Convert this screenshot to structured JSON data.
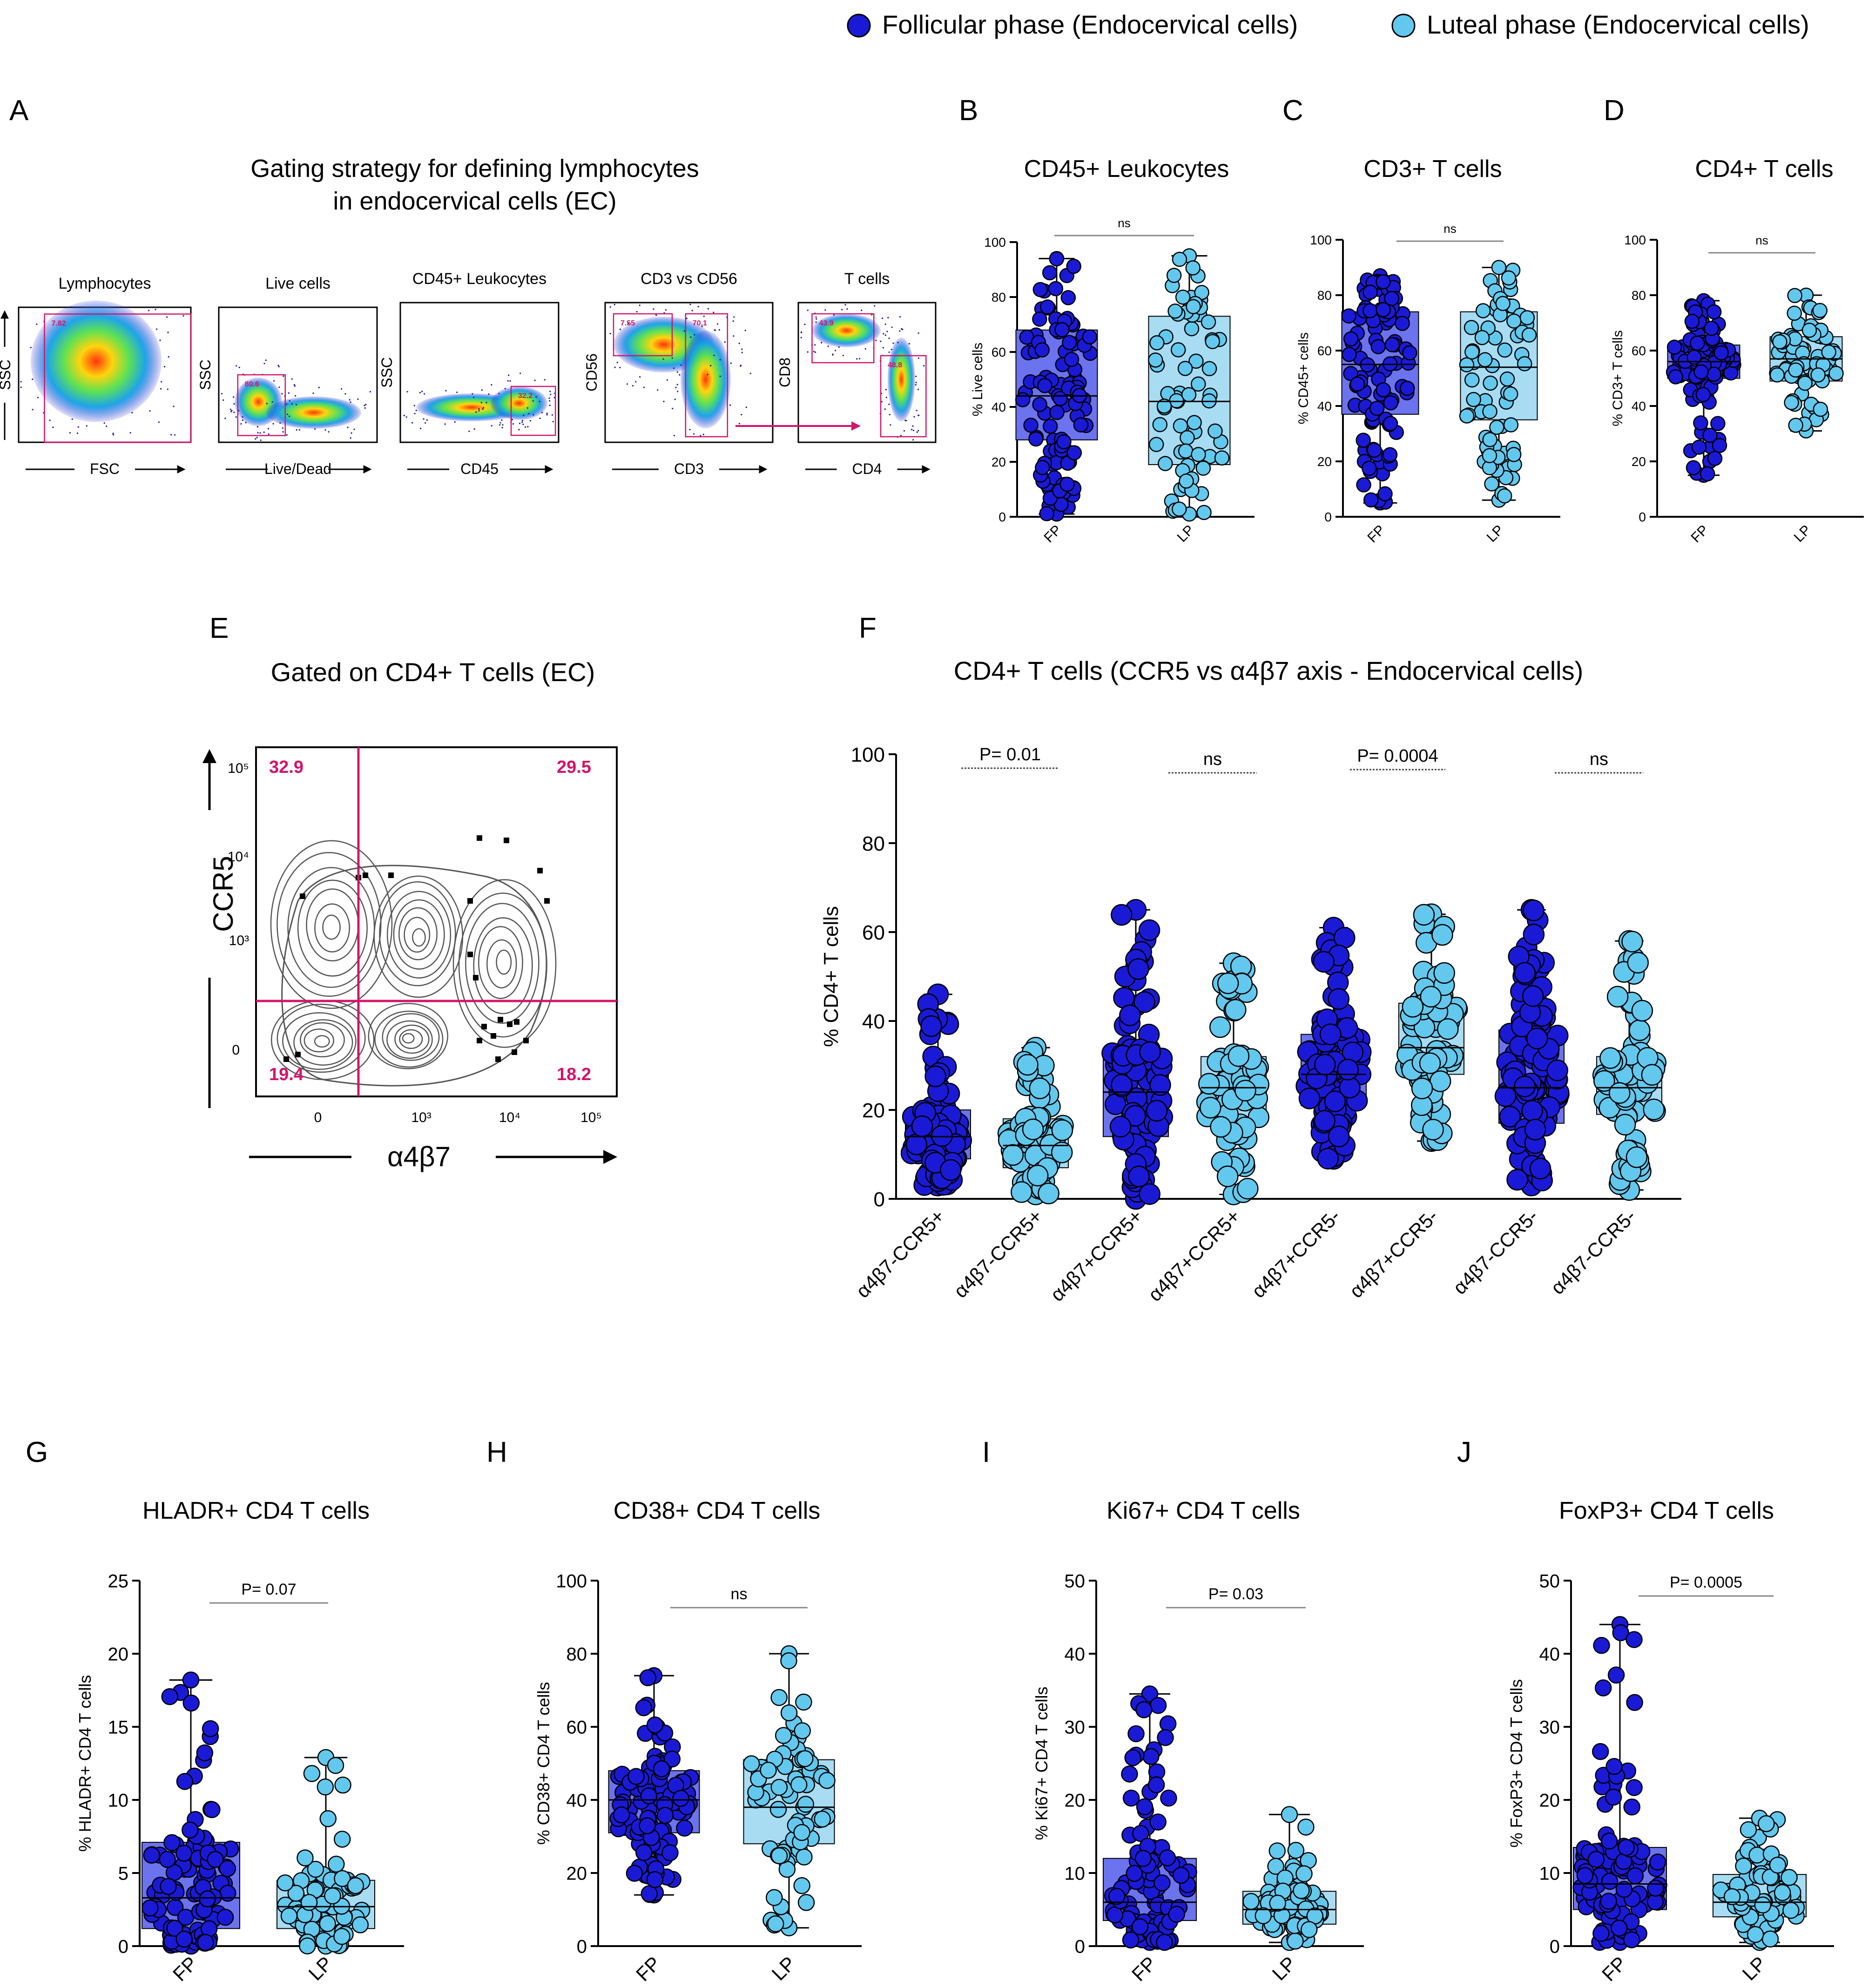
{
  "colors": {
    "fp": "#1a1ad6",
    "lp": "#63c8ee",
    "fp_box": "#6b73ee",
    "lp_box": "#a7dcf3",
    "gate": "#d4136a",
    "contour": "#555555",
    "point_edge": "#000000"
  },
  "legend": [
    {
      "label": "Follicular phase (Endocervical cells)",
      "color": "fp"
    },
    {
      "label": "Luteal phase (Endocervical cells)",
      "color": "lp"
    }
  ],
  "panel_a": {
    "letter": "A",
    "title_line1": "Gating strategy for defining lymphocytes",
    "title_line2": "in endocervical cells (EC)",
    "plots": [
      {
        "title": "Lymphocytes",
        "xlabel": "FSC",
        "ylabel": "SSC",
        "gates": [
          "7.82"
        ]
      },
      {
        "title": "Live cells",
        "xlabel": "Live/Dead",
        "ylabel": "SSC",
        "gates": [
          "80.6"
        ]
      },
      {
        "title": "CD45+ Leukocytes",
        "xlabel": "CD45",
        "ylabel": "SSC",
        "gates": [
          "32.2"
        ]
      },
      {
        "title": "CD3 vs CD56",
        "xlabel": "CD3",
        "ylabel": "CD56",
        "gates": [
          "7.55",
          "70.1"
        ]
      },
      {
        "title": "T cells",
        "xlabel": "CD4",
        "ylabel": "CD8",
        "gates": [
          "43.9",
          "48.8"
        ]
      }
    ]
  },
  "panel_e": {
    "letter": "E",
    "title": "Gated on CD4+ T cells (EC)",
    "ylabel": "CCR5",
    "xlabel": "α4β7",
    "quadrants": {
      "top_left": "32.9",
      "top_right": "29.5",
      "bottom_left": "19.4",
      "bottom_right": "18.2"
    },
    "x_ticks": [
      "0",
      "10³",
      "10⁴",
      "10⁵"
    ],
    "y_ticks": [
      "10⁵",
      "10⁴",
      "10³",
      "0"
    ]
  },
  "chart_data": [
    {
      "id": "B",
      "letter": "B",
      "type": "box",
      "title": "CD45+ Leukocytes",
      "ylabel": "% Live cells",
      "ylim": [
        0,
        100
      ],
      "yticks": [
        0,
        20,
        40,
        60,
        80,
        100
      ],
      "categories": [
        "FP",
        "LP"
      ],
      "annotation": "ns",
      "groups": [
        {
          "phase": "fp",
          "label": "FP",
          "min": 1,
          "q1": 28,
          "median": 44,
          "q3": 68,
          "max": 94,
          "n": 110
        },
        {
          "phase": "lp",
          "label": "LP",
          "min": 1,
          "q1": 19,
          "median": 42,
          "q3": 73,
          "max": 95,
          "n": 75
        }
      ]
    },
    {
      "id": "C",
      "letter": "C",
      "type": "box",
      "title": "CD3+ T cells",
      "ylabel": "% CD45+ cells",
      "ylim": [
        0,
        100
      ],
      "yticks": [
        0,
        20,
        40,
        60,
        80,
        100
      ],
      "categories": [
        "FP",
        "LP"
      ],
      "annotation": "ns",
      "groups": [
        {
          "phase": "fp",
          "label": "FP",
          "min": 5,
          "q1": 37,
          "median": 55,
          "q3": 74,
          "max": 87,
          "n": 105
        },
        {
          "phase": "lp",
          "label": "LP",
          "min": 6,
          "q1": 35,
          "median": 54,
          "q3": 74,
          "max": 90,
          "n": 75
        }
      ]
    },
    {
      "id": "D",
      "letter": "D",
      "type": "box",
      "title": "CD4+ T cells",
      "ylabel": "% CD3+ T cells",
      "ylim": [
        0,
        100
      ],
      "yticks": [
        0,
        20,
        40,
        60,
        80,
        100
      ],
      "categories": [
        "FP",
        "LP"
      ],
      "annotation": "ns",
      "groups": [
        {
          "phase": "fp",
          "label": "FP",
          "min": 15,
          "q1": 50,
          "median": 56,
          "q3": 62,
          "max": 78,
          "n": 110
        },
        {
          "phase": "lp",
          "label": "LP",
          "min": 31,
          "q1": 49,
          "median": 57,
          "q3": 65,
          "max": 80,
          "n": 75
        }
      ]
    },
    {
      "id": "F",
      "letter": "F",
      "type": "box",
      "title": "CD4+ T cells (CCR5 vs α4β7 axis - Endocervical cells)",
      "ylabel": "% CD4+ T cells",
      "ylim": [
        0,
        100
      ],
      "yticks": [
        0,
        20,
        40,
        60,
        80,
        100
      ],
      "categories": [
        "α4β7-CCR5+",
        "α4β7-CCR5+",
        "α4β7+CCR5+",
        "α4β7+CCR5+",
        "α4β7+CCR5-",
        "α4β7+CCR5-",
        "α4β7-CCR5-",
        "α4β7-CCR5-"
      ],
      "comparisons": [
        "P= 0.01",
        "ns",
        "P= 0.0004",
        "ns"
      ],
      "groups": [
        {
          "phase": "fp",
          "label": "α4β7-CCR5+",
          "min": 3,
          "q1": 9,
          "median": 14,
          "q3": 20,
          "max": 46,
          "n": 100
        },
        {
          "phase": "lp",
          "label": "α4β7-CCR5+",
          "min": 1,
          "q1": 7,
          "median": 12,
          "q3": 18,
          "max": 34,
          "n": 75
        },
        {
          "phase": "fp",
          "label": "α4β7+CCR5+",
          "min": 0,
          "q1": 14,
          "median": 24,
          "q3": 33,
          "max": 65,
          "n": 100
        },
        {
          "phase": "lp",
          "label": "α4β7+CCR5+",
          "min": 1,
          "q1": 17,
          "median": 25,
          "q3": 32,
          "max": 53,
          "n": 75
        },
        {
          "phase": "fp",
          "label": "α4β7+CCR5-",
          "min": 9,
          "q1": 21,
          "median": 28,
          "q3": 37,
          "max": 61,
          "n": 100
        },
        {
          "phase": "lp",
          "label": "α4β7+CCR5-",
          "min": 13,
          "q1": 28,
          "median": 34,
          "q3": 44,
          "max": 64,
          "n": 75
        },
        {
          "phase": "fp",
          "label": "α4β7-CCR5-",
          "min": 3,
          "q1": 17,
          "median": 25,
          "q3": 38,
          "max": 65,
          "n": 100
        },
        {
          "phase": "lp",
          "label": "α4β7-CCR5-",
          "min": 2,
          "q1": 19,
          "median": 25,
          "q3": 32,
          "max": 58,
          "n": 75
        }
      ]
    },
    {
      "id": "G",
      "letter": "G",
      "type": "box",
      "title": "HLADR+ CD4 T cells",
      "ylabel": "% HLADR+ CD4 T cells",
      "ylim": [
        0,
        25
      ],
      "yticks": [
        0,
        5,
        10,
        15,
        20,
        25
      ],
      "categories": [
        "FP",
        "LP"
      ],
      "annotation": "P= 0.07",
      "groups": [
        {
          "phase": "fp",
          "label": "FP",
          "min": 0,
          "q1": 1.2,
          "median": 3.3,
          "q3": 7.1,
          "max": 18.2,
          "n": 105
        },
        {
          "phase": "lp",
          "label": "LP",
          "min": 0,
          "q1": 1.2,
          "median": 2.7,
          "q3": 4.5,
          "max": 12.9,
          "n": 75
        }
      ]
    },
    {
      "id": "H",
      "letter": "H",
      "type": "box",
      "title": "CD38+ CD4 T cells",
      "ylabel": "% CD38+ CD4 T cells",
      "ylim": [
        0,
        100
      ],
      "yticks": [
        0,
        20,
        40,
        60,
        80,
        100
      ],
      "categories": [
        "FP",
        "LP"
      ],
      "annotation": "ns",
      "groups": [
        {
          "phase": "fp",
          "label": "FP",
          "min": 14,
          "q1": 31,
          "median": 40,
          "q3": 48,
          "max": 74,
          "n": 105
        },
        {
          "phase": "lp",
          "label": "LP",
          "min": 5,
          "q1": 28,
          "median": 38,
          "q3": 51,
          "max": 80,
          "n": 75
        }
      ]
    },
    {
      "id": "I",
      "letter": "I",
      "type": "box",
      "title": "Ki67+ CD4 T cells",
      "ylabel": "% Ki67+ CD4 T cells",
      "ylim": [
        0,
        50
      ],
      "yticks": [
        0,
        10,
        20,
        30,
        40,
        50
      ],
      "categories": [
        "FP",
        "LP"
      ],
      "annotation": "P= 0.03",
      "groups": [
        {
          "phase": "fp",
          "label": "FP",
          "min": 0.5,
          "q1": 3.5,
          "median": 6,
          "q3": 12,
          "max": 34.5,
          "n": 100
        },
        {
          "phase": "lp",
          "label": "LP",
          "min": 0.5,
          "q1": 3,
          "median": 5,
          "q3": 7.5,
          "max": 18,
          "n": 75
        }
      ]
    },
    {
      "id": "J",
      "letter": "J",
      "type": "box",
      "title": "FoxP3+ CD4 T cells",
      "ylabel": "% FoxP3+ CD4 T cells",
      "ylim": [
        0,
        50
      ],
      "yticks": [
        0,
        10,
        20,
        30,
        40,
        50
      ],
      "categories": [
        "FP",
        "LP"
      ],
      "annotation": "P= 0.0005",
      "groups": [
        {
          "phase": "fp",
          "label": "FP",
          "min": 0.5,
          "q1": 5,
          "median": 8.5,
          "q3": 13.5,
          "max": 44,
          "n": 105
        },
        {
          "phase": "lp",
          "label": "LP",
          "min": 0.5,
          "q1": 4,
          "median": 6,
          "q3": 9.8,
          "max": 17.5,
          "n": 75
        }
      ]
    }
  ]
}
